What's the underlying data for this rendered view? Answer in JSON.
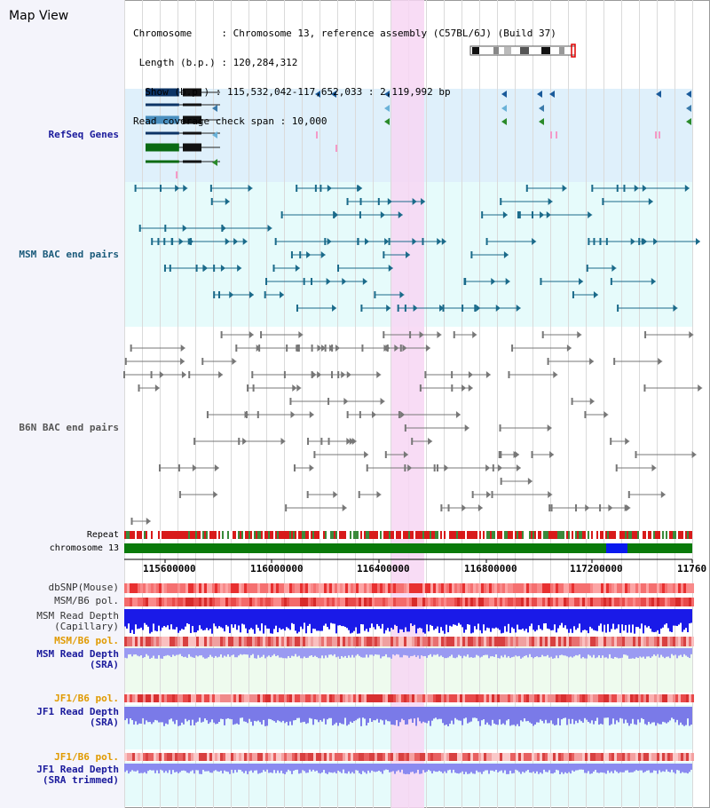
{
  "header": {
    "title": "Map View",
    "info_lines": [
      "Chromosome     : Chromosome 13, reference assembly (C57BL/6J) (Build 37)",
      " Length (b.p.) : 120,284,312",
      "  Show (b.p.) : 115,532,042-117,652,033 : 2,119,992 bp",
      "Read coverage check span : 10,000"
    ]
  },
  "tracks": {
    "refseq": "RefSeq Genes",
    "msm_bac": "MSM BAC end pairs",
    "b6n_bac": "B6N BAC end pairs",
    "repeat": "Repeat",
    "chromosome": "chromosome 13",
    "dbsnp": "dbSNP(Mouse)",
    "msm_b6_pol_1": "MSM/B6 pol.",
    "msm_read_depth_cap": "MSM Read Depth\n(Capillary)",
    "msm_b6_pol_2": "MSM/B6 pol.",
    "msm_read_depth_sra": "MSM Read Depth\n(SRA)",
    "jf1_b6_pol_1": "JF1/B6 pol.",
    "jf1_read_depth_sra": "JF1 Read Depth\n(SRA)",
    "jf1_b6_pol_2": "JF1/B6 pol.",
    "jf1_read_depth_trim": "JF1 Read Depth\n(SRA trimmed)"
  },
  "axis": {
    "ticks": [
      "115600000",
      "116000000",
      "116400000",
      "116800000",
      "117200000",
      "11760"
    ]
  },
  "colors": {
    "refseq_bg": "#dff0fb",
    "msm_bg": "#e6fbfb",
    "highlight": "#f7d6f3",
    "chrom_green": "#0a7a0a",
    "label_blue": "#1a1a9c",
    "label_orange": "#e09a00",
    "label_teal": "#1a5a7a"
  }
}
